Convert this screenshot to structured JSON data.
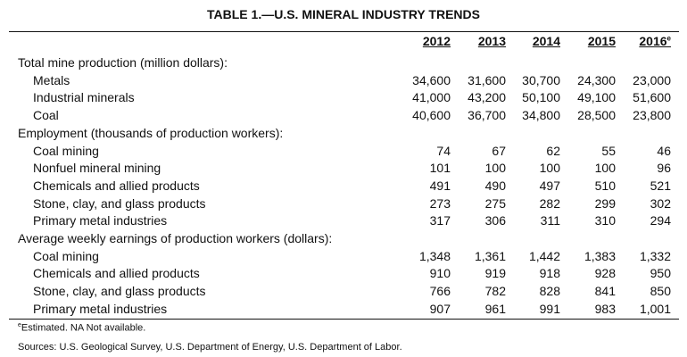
{
  "title": "TABLE 1.—U.S. MINERAL INDUSTRY TRENDS",
  "years": [
    "2012",
    "2013",
    "2014",
    "2015",
    "2016"
  ],
  "last_year_mark": "e",
  "rows": [
    {
      "label": "Total mine production (million dollars):",
      "indent": false,
      "values": []
    },
    {
      "label": "Metals",
      "indent": true,
      "values": [
        "34,600",
        "31,600",
        "30,700",
        "24,300",
        "23,000"
      ]
    },
    {
      "label": "Industrial minerals",
      "indent": true,
      "values": [
        "41,000",
        "43,200",
        "50,100",
        "49,100",
        "51,600"
      ]
    },
    {
      "label": "Coal",
      "indent": true,
      "values": [
        "40,600",
        "36,700",
        "34,800",
        "28,500",
        "23,800"
      ]
    },
    {
      "label": "Employment (thousands of production workers):",
      "indent": false,
      "values": []
    },
    {
      "label": "Coal mining",
      "indent": true,
      "values": [
        "74",
        "67",
        "62",
        "55",
        "46"
      ]
    },
    {
      "label": "Nonfuel mineral mining",
      "indent": true,
      "values": [
        "101",
        "100",
        "100",
        "100",
        "96"
      ]
    },
    {
      "label": "Chemicals and allied products",
      "indent": true,
      "values": [
        "491",
        "490",
        "497",
        "510",
        "521"
      ]
    },
    {
      "label": "Stone, clay, and glass products",
      "indent": true,
      "values": [
        "273",
        "275",
        "282",
        "299",
        "302"
      ]
    },
    {
      "label": "Primary metal industries",
      "indent": true,
      "values": [
        "317",
        "306",
        "311",
        "310",
        "294"
      ]
    },
    {
      "label": "Average weekly earnings of production workers (dollars):",
      "indent": false,
      "values": []
    },
    {
      "label": "Coal mining",
      "indent": true,
      "values": [
        "1,348",
        "1,361",
        "1,442",
        "1,383",
        "1,332"
      ]
    },
    {
      "label": "Chemicals and allied products",
      "indent": true,
      "values": [
        "910",
        "919",
        "918",
        "928",
        "950"
      ]
    },
    {
      "label": "Stone, clay, and glass products",
      "indent": true,
      "values": [
        "766",
        "782",
        "828",
        "841",
        "850"
      ]
    },
    {
      "label": "Primary metal industries",
      "indent": true,
      "values": [
        "907",
        "961",
        "991",
        "983",
        "1,001"
      ]
    }
  ],
  "footnotes": {
    "mark": "e",
    "estimated": "Estimated. NA Not available.",
    "sources": "Sources: U.S. Geological Survey, U.S. Department of Energy, U.S. Department of Labor."
  }
}
